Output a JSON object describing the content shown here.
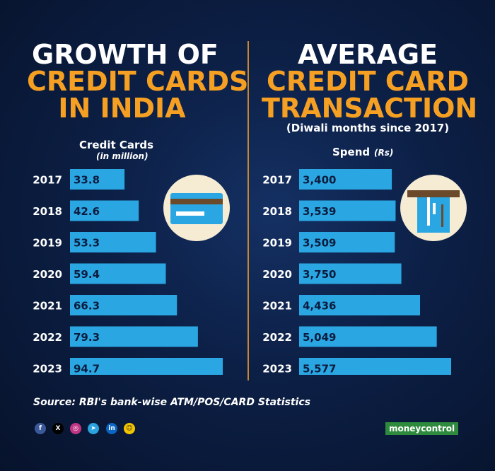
{
  "left_title": {
    "line1": "GROWTH OF",
    "line2": "CREDIT CARDS",
    "line3": "IN INDIA"
  },
  "right_title": {
    "line1": "AVERAGE",
    "line2": "CREDIT CARD",
    "line3": "TRANSACTION",
    "subtitle": "(Diwali months since 2017)"
  },
  "source": "Source: RBI's bank-wise ATM/POS/CARD Statistics",
  "brand": "moneycontrol",
  "social_icons": [
    "facebook-icon",
    "x-icon",
    "instagram-icon",
    "telegram-icon",
    "linkedin-icon",
    "snapchat-icon"
  ],
  "colors": {
    "bar": "#2aa7e3",
    "accent": "#f6a023",
    "background": "#0c1f45",
    "divider": "#c8862e",
    "icon_circle": "#f6ecd3"
  },
  "chart_data": [
    {
      "type": "bar",
      "orientation": "horizontal",
      "title": "GROWTH OF CREDIT CARDS IN INDIA",
      "ylabel": "Credit Cards",
      "ylabel_sub": "(in million)",
      "categories": [
        "2017",
        "2018",
        "2019",
        "2020",
        "2021",
        "2022",
        "2023"
      ],
      "values": [
        33.8,
        42.6,
        53.3,
        59.4,
        66.3,
        79.3,
        94.7
      ],
      "labels": [
        "33.8",
        "42.6",
        "53.3",
        "59.4",
        "66.3",
        "79.3",
        "94.7"
      ],
      "grid": false,
      "icon": "credit-card-icon"
    },
    {
      "type": "bar",
      "orientation": "horizontal",
      "title": "AVERAGE CREDIT CARD TRANSACTION",
      "subtitle": "(Diwali months since 2017)",
      "ylabel": "Spend",
      "ylabel_sub": "(Rs)",
      "categories": [
        "2017",
        "2018",
        "2019",
        "2020",
        "2021",
        "2022",
        "2023"
      ],
      "values": [
        3400,
        3539,
        3509,
        3750,
        4436,
        5049,
        5577
      ],
      "labels": [
        "3,400",
        "3,539",
        "3,509",
        "3,750",
        "4,436",
        "5,049",
        "5,577"
      ],
      "grid": false,
      "icon": "card-swipe-icon"
    }
  ]
}
